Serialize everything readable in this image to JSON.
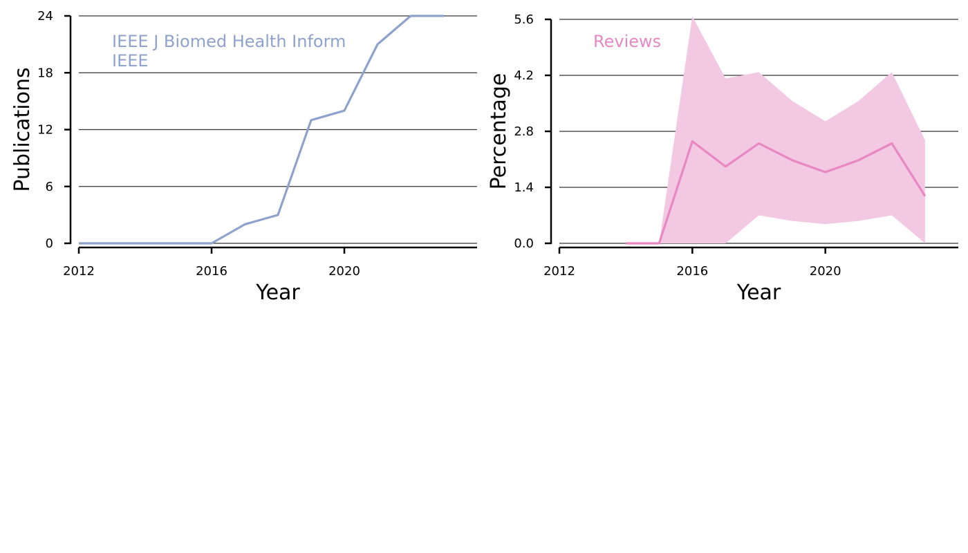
{
  "chart_data": [
    {
      "type": "line",
      "xlabel": "Year",
      "ylabel": "Publications",
      "xlim": [
        2012,
        2024
      ],
      "ylim": [
        0,
        24
      ],
      "xticks": [
        2012,
        2016,
        2020
      ],
      "yticks": [
        0,
        6,
        12,
        18,
        24
      ],
      "grid": "horizontal",
      "colors": {
        "series": "#8fa2cb",
        "grid": "#333333",
        "axis": "#000000"
      },
      "annotation": [
        "IEEE J Biomed Health Inform",
        "IEEE"
      ],
      "series": [
        {
          "x": [
            2012,
            2013,
            2014,
            2015,
            2016,
            2017,
            2018,
            2019,
            2020,
            2021,
            2022,
            2023
          ],
          "values": [
            0,
            0,
            0,
            0,
            0,
            2,
            3,
            13,
            14,
            21,
            24,
            24
          ]
        }
      ]
    },
    {
      "type": "area",
      "xlabel": "Year",
      "ylabel": "Percentage",
      "xlim": [
        2012,
        2024
      ],
      "ylim": [
        0,
        5.6
      ],
      "xticks": [
        2012,
        2016,
        2020
      ],
      "yticks": [
        0.0,
        1.4,
        2.8,
        4.2,
        5.6
      ],
      "ytick_labels": [
        "0.0",
        "1.4",
        "2.8",
        "4.2",
        "5.6"
      ],
      "grid": "horizontal",
      "colors": {
        "series": "#e788c2",
        "band": "#f3c8e3",
        "grid": "#333333",
        "axis": "#000000"
      },
      "annotation": [
        "Reviews"
      ],
      "series": [
        {
          "x": [
            2014,
            2015,
            2016,
            2017,
            2018,
            2019,
            2020,
            2021,
            2022,
            2023
          ],
          "values": [
            0.0,
            0.0,
            2.55,
            1.92,
            2.5,
            2.08,
            1.78,
            2.08,
            2.5,
            1.18
          ],
          "lower": [
            0.0,
            0.0,
            0.0,
            0.0,
            0.7,
            0.56,
            0.48,
            0.56,
            0.7,
            0.0
          ],
          "upper": [
            0.0,
            0.0,
            5.68,
            4.12,
            4.28,
            3.56,
            3.05,
            3.56,
            4.28,
            2.58
          ]
        }
      ]
    }
  ]
}
